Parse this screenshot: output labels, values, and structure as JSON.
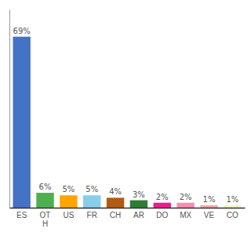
{
  "chart_data": {
    "type": "bar",
    "categories": [
      "ES",
      "OT\nH",
      "US",
      "FR",
      "CH",
      "AR",
      "DO",
      "MX",
      "VE",
      "CO"
    ],
    "values": [
      69,
      6,
      5,
      5,
      4,
      3,
      2,
      2,
      1,
      1
    ],
    "value_labels": [
      "69%",
      "6%",
      "5%",
      "5%",
      "4%",
      "3%",
      "2%",
      "2%",
      "1%",
      "1%"
    ],
    "colors": [
      "#4472c4",
      "#4caf50",
      "#ffa500",
      "#87ceeb",
      "#b25a10",
      "#2e7d32",
      "#e91e8c",
      "#f48fb1",
      "#f4a9a8",
      "#f5f5c8"
    ],
    "ylim": [
      0,
      80
    ],
    "yticks": [],
    "data_labels": true,
    "tick_labels": "x",
    "grid": false
  }
}
